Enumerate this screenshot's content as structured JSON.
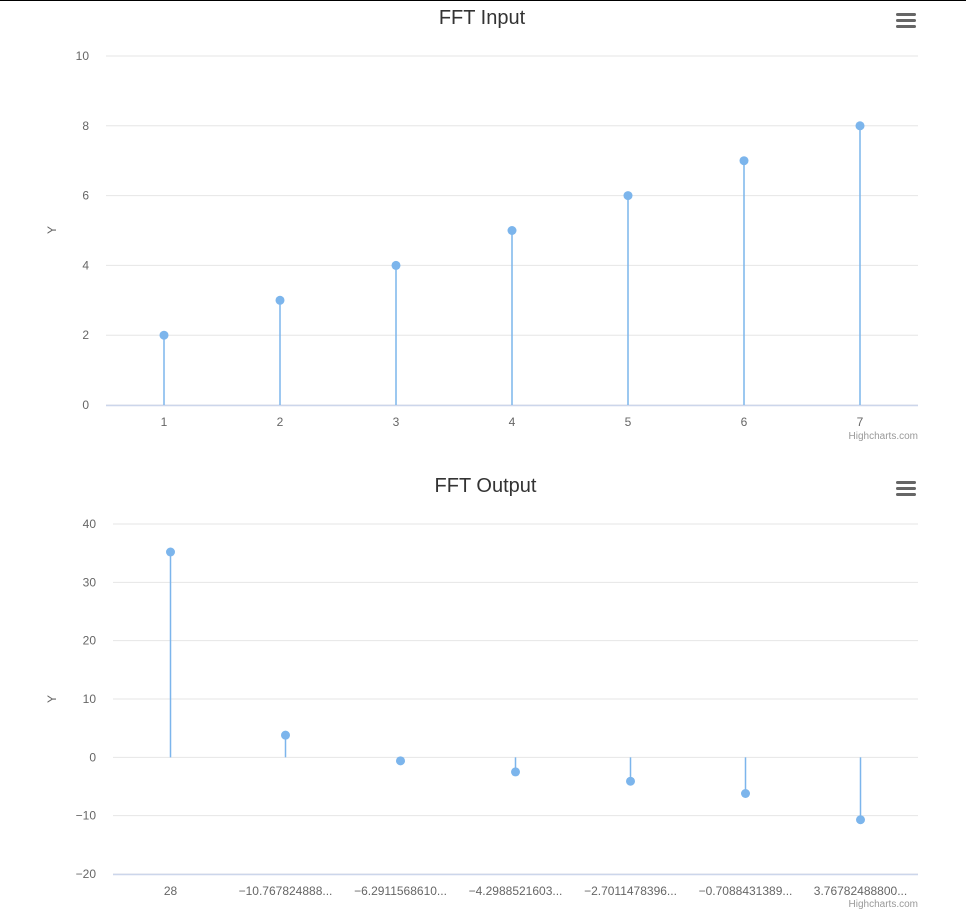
{
  "page": {
    "icons": [
      "hamburger-menu-icon"
    ],
    "colors": {
      "series": "#7cb5ec",
      "grid": "#e6e6e6",
      "axis_line": "#ccd6eb",
      "text": "#333333",
      "label": "#666666",
      "credits": "#999999"
    }
  },
  "charts": [
    {
      "credits": "Highcharts.com",
      "chart_data": {
        "type": "stem",
        "title": "FFT Input",
        "ylabel": "Y",
        "categories": [
          "1",
          "2",
          "3",
          "4",
          "5",
          "6",
          "7"
        ],
        "values": [
          2,
          3,
          4,
          5,
          6,
          7,
          8
        ],
        "yticks": [
          0,
          2,
          4,
          6,
          8,
          10
        ],
        "ylim": [
          0,
          10
        ],
        "grid": true,
        "legend": "none"
      }
    },
    {
      "credits": "Highcharts.com",
      "chart_data": {
        "type": "stem",
        "title": "FFT Output",
        "ylabel": "Y",
        "categories": [
          "28",
          "−10.767824888...",
          "−6.2911568610...",
          "−4.2988521603...",
          "−2.7011478396...",
          "−0.7088431389...",
          "3.76782488800..."
        ],
        "values": [
          35.2,
          3.8,
          -0.6,
          -2.5,
          -4.1,
          -6.2,
          -10.7
        ],
        "yticks": [
          -20,
          -10,
          0,
          10,
          20,
          30,
          40
        ],
        "ylim": [
          -20,
          40
        ],
        "grid": true,
        "legend": "none"
      }
    }
  ]
}
